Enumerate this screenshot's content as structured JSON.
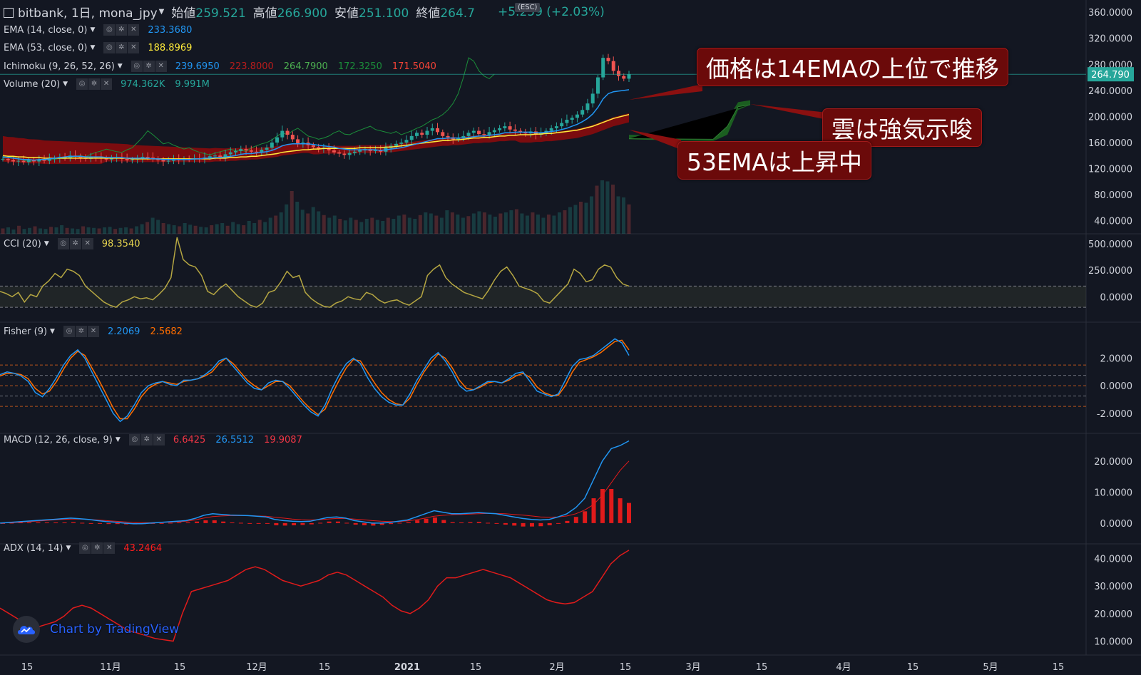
{
  "header": {
    "symbol": "bitbank, 1日, mona_jpy",
    "open_label": "始値",
    "open": "259.521",
    "high_label": "高値",
    "high": "266.900",
    "low_label": "安値",
    "low": "251.100",
    "close_label": "終値",
    "close": "264.7",
    "change": "+5.259 (+2.03%)",
    "esc": "(ESC)"
  },
  "indicators": {
    "ema14": {
      "label": "EMA (14, close, 0)",
      "value": "233.3680",
      "color": "#2196f3"
    },
    "ema53": {
      "label": "EMA (53, close, 0)",
      "value": "188.8969",
      "color": "#ffeb3b"
    },
    "ichimoku": {
      "label": "Ichimoku (9, 26, 52, 26)",
      "values": [
        "239.6950",
        "223.8000",
        "264.7900",
        "172.3250",
        "171.5040"
      ],
      "colors": [
        "#2196f3",
        "#b71c1c",
        "#4caf50",
        "#1b5e20",
        "#f44336"
      ]
    },
    "volume": {
      "label": "Volume (20)",
      "values": [
        "974.362K",
        "9.991M"
      ],
      "color": "#26a69a"
    },
    "cci": {
      "label": "CCI (20)",
      "value": "98.3540",
      "color": "#c9b84a"
    },
    "fisher": {
      "label": "Fisher (9)",
      "values": [
        "2.2069",
        "2.5682"
      ],
      "colors": [
        "#2196f3",
        "#ff6d00"
      ]
    },
    "macd": {
      "label": "MACD (12, 26, close, 9)",
      "values": [
        "6.6425",
        "26.5512",
        "19.9087"
      ],
      "colors": [
        "#f23645",
        "#2196f3",
        "#f23645"
      ]
    },
    "adx": {
      "label": "ADX (14, 14)",
      "value": "43.2464",
      "color": "#ff0000"
    }
  },
  "callouts": {
    "c1": "価格は14EMAの上位で推移",
    "c2": "雲は強気示唆",
    "c3": "53EMAは上昇中"
  },
  "watermark": "Chart by TradingView",
  "price_tag": "264.790",
  "colors": {
    "bg": "#131722",
    "up": "#26a69a",
    "down": "#ef5350",
    "ema14": "#2196f3",
    "ema53": "#ffeb3b"
  },
  "chart_data": [
    {
      "type": "candlestick",
      "title": "bitbank, 1日, mona_jpy",
      "x_ticks": [
        "15",
        "11月",
        "15",
        "12月",
        "15",
        "2021",
        "15",
        "2月",
        "15",
        "3月",
        "15",
        "4月",
        "15",
        "5月",
        "15"
      ],
      "y_ticks": [
        "360.0000",
        "320.0000",
        "280.0000",
        "240.0000",
        "200.0000",
        "160.0000",
        "120.0000",
        "80.0000",
        "40.0000"
      ],
      "ylim": [
        20,
        370
      ],
      "close_approx": [
        135,
        133,
        131,
        132,
        130,
        133,
        131,
        134,
        132,
        135,
        136,
        138,
        136,
        140,
        139,
        137,
        135,
        138,
        137,
        136,
        134,
        136,
        137,
        135,
        133,
        134,
        136,
        138,
        137,
        135,
        133,
        131,
        132,
        134,
        133,
        135,
        134,
        136,
        135,
        137,
        139,
        140,
        138,
        142,
        145,
        147,
        150,
        148,
        146,
        145,
        149,
        152,
        160,
        168,
        178,
        172,
        165,
        158,
        160,
        156,
        153,
        150,
        152,
        148,
        145,
        143,
        141,
        144,
        146,
        148,
        150,
        147,
        149,
        146,
        152,
        155,
        158,
        160,
        164,
        170,
        175,
        172,
        178,
        182,
        176,
        170,
        168,
        165,
        167,
        170,
        175,
        178,
        173,
        172,
        176,
        179,
        182,
        185,
        180,
        178,
        176,
        174,
        177,
        172,
        175,
        178,
        182,
        185,
        190,
        195,
        198,
        203,
        210,
        220,
        235,
        260,
        290,
        285,
        270,
        262,
        258,
        265
      ],
      "ema14_approx": [
        138,
        137,
        136,
        135,
        134,
        134,
        133,
        134,
        134,
        135,
        136,
        137,
        138,
        139,
        139,
        139,
        138,
        138,
        138,
        138,
        137,
        137,
        137,
        137,
        136,
        136,
        136,
        136,
        136,
        135,
        135,
        134,
        134,
        134,
        134,
        134,
        134,
        135,
        135,
        136,
        136,
        137,
        137,
        138,
        139,
        140,
        142,
        143,
        143,
        144,
        145,
        146,
        148,
        151,
        155,
        157,
        158,
        158,
        158,
        158,
        157,
        156,
        155,
        154,
        153,
        151,
        150,
        149,
        149,
        149,
        149,
        149,
        149,
        148,
        149,
        150,
        151,
        152,
        154,
        156,
        158,
        160,
        162,
        164,
        166,
        166,
        167,
        167,
        167,
        167,
        168,
        169,
        170,
        170,
        171,
        172,
        173,
        175,
        175,
        176,
        176,
        176,
        176,
        175,
        175,
        176,
        177,
        178,
        180,
        182,
        185,
        188,
        192,
        197,
        204,
        214,
        227,
        235,
        238,
        239,
        240,
        241
      ],
      "ema53_approx": [
        140,
        139,
        139,
        138,
        138,
        137,
        137,
        137,
        136,
        136,
        136,
        136,
        136,
        136,
        136,
        136,
        136,
        136,
        136,
        136,
        136,
        136,
        136,
        136,
        136,
        135,
        135,
        135,
        135,
        135,
        135,
        135,
        135,
        135,
        135,
        135,
        135,
        135,
        135,
        135,
        135,
        136,
        136,
        136,
        137,
        137,
        138,
        138,
        139,
        139,
        140,
        141,
        142,
        143,
        145,
        146,
        147,
        148,
        149,
        149,
        150,
        150,
        151,
        151,
        151,
        151,
        151,
        151,
        151,
        152,
        152,
        152,
        152,
        152,
        153,
        153,
        154,
        155,
        156,
        157,
        158,
        159,
        160,
        161,
        162,
        163,
        163,
        164,
        164,
        165,
        166,
        167,
        167,
        168,
        168,
        169,
        170,
        170,
        171,
        171,
        172,
        172,
        172,
        173,
        173,
        174,
        174,
        175,
        176,
        177,
        178,
        179,
        181,
        183,
        185,
        188,
        191,
        194,
        197,
        199,
        201,
        203
      ]
    },
    {
      "type": "line",
      "title": "CCI (20)",
      "y_ticks": [
        "500.0000",
        "250.0000",
        "0.0000"
      ],
      "ylim": [
        -200,
        560
      ],
      "values": [
        50,
        30,
        0,
        40,
        -50,
        20,
        0,
        100,
        150,
        220,
        180,
        260,
        240,
        200,
        100,
        50,
        0,
        -50,
        -80,
        -100,
        -50,
        -30,
        0,
        -20,
        -10,
        -30,
        20,
        80,
        180,
        560,
        350,
        300,
        280,
        200,
        50,
        20,
        80,
        120,
        60,
        0,
        -40,
        -80,
        -100,
        -60,
        40,
        60,
        140,
        240,
        180,
        200,
        40,
        -20,
        -60,
        -90,
        -100,
        -60,
        -40,
        0,
        -20,
        -30,
        40,
        20,
        -30,
        -60,
        -40,
        -30,
        -60,
        -80,
        -40,
        0,
        200,
        260,
        300,
        180,
        120,
        80,
        40,
        20,
        0,
        -20,
        60,
        160,
        240,
        280,
        200,
        100,
        80,
        60,
        30,
        -40,
        -60,
        0,
        60,
        120,
        260,
        220,
        140,
        160,
        260,
        300,
        280,
        180,
        120,
        100
      ]
    },
    {
      "type": "line",
      "title": "Fisher (9)",
      "y_ticks": [
        "2.0000",
        "0.0000",
        "-2.0000"
      ],
      "ylim": [
        -3.2,
        4.4
      ],
      "series": [
        {
          "values": [
            0.8,
            1.0,
            0.9,
            0.7,
            0.3,
            -0.5,
            -0.8,
            -0.2,
            0.6,
            1.5,
            2.2,
            2.6,
            2.0,
            1.0,
            0.0,
            -1.0,
            -2.0,
            -2.6,
            -2.2,
            -1.4,
            -0.5,
            0.0,
            0.2,
            0.3,
            0.1,
            0.0,
            0.4,
            0.4,
            0.5,
            0.8,
            1.2,
            1.8,
            2.0,
            1.4,
            0.8,
            0.2,
            -0.2,
            -0.3,
            0.2,
            0.4,
            0.3,
            -0.2,
            -0.8,
            -1.4,
            -1.9,
            -2.2,
            -1.4,
            -0.2,
            0.8,
            1.6,
            2.0,
            1.6,
            0.6,
            -0.2,
            -0.8,
            -1.2,
            -1.4,
            -1.4,
            -0.6,
            0.4,
            1.2,
            2.0,
            2.4,
            1.8,
            1.0,
            0.0,
            -0.4,
            -0.3,
            0.0,
            0.3,
            0.3,
            0.2,
            0.5,
            0.9,
            1.0,
            0.3,
            -0.4,
            -0.6,
            -0.8,
            -0.6,
            0.4,
            1.4,
            1.9,
            2.0,
            2.2,
            2.6,
            3.0,
            3.4,
            3.1,
            2.2
          ]
        },
        {
          "values": [
            0.7,
            0.9,
            0.9,
            0.8,
            0.5,
            -0.2,
            -0.6,
            -0.4,
            0.3,
            1.2,
            2.0,
            2.5,
            2.2,
            1.3,
            0.4,
            -0.6,
            -1.6,
            -2.4,
            -2.4,
            -1.7,
            -0.8,
            -0.2,
            0.1,
            0.3,
            0.2,
            0.1,
            0.3,
            0.4,
            0.5,
            0.7,
            1.0,
            1.6,
            2.0,
            1.6,
            1.0,
            0.4,
            0.0,
            -0.3,
            0.0,
            0.3,
            0.3,
            0.0,
            -0.6,
            -1.2,
            -1.7,
            -2.1,
            -1.7,
            -0.6,
            0.4,
            1.3,
            1.9,
            1.8,
            1.0,
            0.2,
            -0.5,
            -1.0,
            -1.3,
            -1.4,
            -0.9,
            0.1,
            1.0,
            1.7,
            2.3,
            2.0,
            1.3,
            0.4,
            -0.2,
            -0.3,
            -0.1,
            0.2,
            0.3,
            0.2,
            0.4,
            0.7,
            0.9,
            0.6,
            -0.1,
            -0.5,
            -0.7,
            -0.7,
            0.0,
            1.0,
            1.7,
            1.9,
            2.1,
            2.4,
            2.8,
            3.2,
            3.3,
            2.6
          ]
        }
      ]
    },
    {
      "type": "bar+line",
      "title": "MACD (12, 26, close, 9)",
      "y_ticks": [
        "20.0000",
        "10.0000",
        "0.0000"
      ],
      "ylim": [
        -6,
        28
      ],
      "macd": [
        0,
        0.2,
        0.4,
        0.6,
        0.8,
        1,
        1.2,
        1.4,
        1.6,
        1.4,
        1.2,
        0.8,
        0.5,
        0.3,
        0,
        -0.2,
        -0.2,
        0,
        0.2,
        0.4,
        0.6,
        0.8,
        1.5,
        2.5,
        3,
        2.8,
        2.6,
        2.5,
        2.4,
        2.2,
        2,
        1.2,
        0.8,
        0.6,
        0.5,
        0.6,
        1.2,
        1.8,
        2,
        1.6,
        0.8,
        0.4,
        0,
        0,
        0.2,
        0.6,
        1,
        2,
        3,
        4,
        3.5,
        3,
        3,
        3.2,
        3.4,
        3.2,
        3,
        2.5,
        2,
        1.5,
        1.2,
        1,
        1.2,
        2,
        3,
        5,
        8,
        14,
        20,
        24,
        25,
        26.5
      ],
      "signal": [
        0,
        0.1,
        0.2,
        0.4,
        0.6,
        0.8,
        1,
        1.2,
        1.3,
        1.3,
        1.2,
        1,
        0.8,
        0.6,
        0.4,
        0.2,
        0.1,
        0.1,
        0.2,
        0.3,
        0.4,
        0.6,
        1,
        1.6,
        2.1,
        2.3,
        2.4,
        2.4,
        2.4,
        2.3,
        2.2,
        1.9,
        1.6,
        1.3,
        1.1,
        1,
        1.1,
        1.3,
        1.5,
        1.5,
        1.3,
        1.1,
        0.8,
        0.6,
        0.5,
        0.5,
        0.7,
        1.1,
        1.6,
        2.2,
        2.5,
        2.7,
        2.8,
        2.9,
        3,
        3.1,
        3.1,
        3,
        2.8,
        2.6,
        2.3,
        2,
        1.9,
        2,
        2.3,
        3,
        4.2,
        6,
        9,
        13,
        17,
        20
      ]
    },
    {
      "type": "line",
      "title": "ADX (14, 14)",
      "y_ticks": [
        "40.0000",
        "30.0000",
        "20.0000",
        "10.0000"
      ],
      "ylim": [
        6,
        44
      ],
      "values": [
        22,
        20,
        18,
        16,
        15,
        16,
        17,
        19,
        22,
        23,
        22,
        20,
        18,
        16,
        14,
        13,
        12,
        11,
        10.5,
        10,
        20,
        28,
        29,
        30,
        31,
        32,
        34,
        36,
        37,
        36,
        34,
        32,
        31,
        30,
        31,
        32,
        34,
        35,
        34,
        32,
        30,
        28,
        26,
        23,
        21,
        20,
        22,
        25,
        30,
        33,
        33,
        34,
        35,
        36,
        35,
        34,
        33,
        31,
        29,
        27,
        25,
        24,
        23.5,
        24,
        26,
        28,
        33,
        38,
        41,
        43
      ]
    },
    {
      "type": "bar",
      "title": "Volume (20)",
      "values": [
        10,
        12,
        8,
        15,
        9,
        11,
        14,
        10,
        9,
        13,
        12,
        16,
        11,
        10,
        9,
        14,
        12,
        11,
        10,
        12,
        13,
        9,
        11,
        12,
        10,
        14,
        18,
        22,
        30,
        26,
        20,
        18,
        16,
        14,
        20,
        17,
        15,
        13,
        12,
        16,
        18,
        20,
        15,
        22,
        18,
        16,
        24,
        20,
        26,
        22,
        30,
        34,
        40,
        55,
        80,
        60,
        45,
        38,
        50,
        42,
        35,
        30,
        34,
        28,
        25,
        30,
        26,
        22,
        28,
        30,
        26,
        24,
        30,
        28,
        34,
        36,
        30,
        28,
        35,
        40,
        38,
        34,
        30,
        44,
        40,
        36,
        30,
        33,
        38,
        42,
        40,
        36,
        32,
        38,
        40,
        44,
        46,
        38,
        34,
        40,
        36,
        30,
        36,
        34,
        40,
        44,
        50,
        54,
        60,
        58,
        70,
        90,
        100,
        98,
        92,
        70,
        68,
        55
      ]
    }
  ]
}
